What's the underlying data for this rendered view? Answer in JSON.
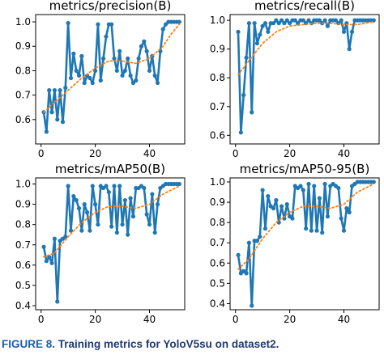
{
  "figure": {
    "label": "FIGURE 8.",
    "caption": "Training metrics for YoloV5su on dataset2."
  },
  "colors": {
    "results": "#1f77b4",
    "smooth": "#ff7f0e"
  },
  "chart_data": [
    {
      "type": "line",
      "title": "metrics/precision(B)",
      "xlim": [
        -2,
        53
      ],
      "ylim": [
        0.5,
        1.03
      ],
      "xticks": [
        0,
        20,
        40
      ],
      "yticks": [
        0.6,
        0.7,
        0.8,
        0.9,
        1.0
      ],
      "ytick_labels": [
        "0.6",
        "0.7",
        "0.8",
        "0.9",
        "1.0"
      ],
      "series": [
        {
          "style": "results-markers",
          "x": [
            1,
            2,
            3,
            4,
            5,
            6,
            7,
            8,
            9,
            10,
            11,
            12,
            13,
            14,
            15,
            16,
            17,
            18,
            19,
            20,
            21,
            22,
            23,
            24,
            25,
            26,
            27,
            28,
            29,
            30,
            31,
            32,
            33,
            34,
            35,
            36,
            37,
            38,
            39,
            40,
            41,
            42,
            43,
            44,
            45,
            46,
            47,
            48,
            49,
            50,
            51
          ],
          "y": [
            0.63,
            0.55,
            0.72,
            0.63,
            0.72,
            0.6,
            0.72,
            0.59,
            0.73,
            0.995,
            0.77,
            0.87,
            0.8,
            0.78,
            0.86,
            0.75,
            0.78,
            0.77,
            0.75,
            0.8,
            0.99,
            0.76,
            0.85,
            0.94,
            0.99,
            0.99,
            0.85,
            0.8,
            0.88,
            0.78,
            0.8,
            0.85,
            0.78,
            0.75,
            0.76,
            0.85,
            0.9,
            0.92,
            0.88,
            0.8,
            0.86,
            0.78,
            0.75,
            0.88,
            0.97,
            0.99,
            1.0,
            1.0,
            1.0,
            1.0,
            1.0
          ]
        },
        {
          "style": "smooth-dotted",
          "x": [
            1,
            5,
            10,
            15,
            20,
            25,
            30,
            35,
            40,
            45,
            48,
            51
          ],
          "y": [
            0.63,
            0.67,
            0.72,
            0.77,
            0.81,
            0.84,
            0.84,
            0.83,
            0.85,
            0.9,
            0.95,
            0.99
          ]
        }
      ]
    },
    {
      "type": "line",
      "title": "metrics/recall(B)",
      "xlim": [
        -2,
        53
      ],
      "ylim": [
        0.57,
        1.02
      ],
      "xticks": [
        0,
        20,
        40
      ],
      "yticks": [
        0.6,
        0.7,
        0.8,
        0.9,
        1.0
      ],
      "ytick_labels": [
        "0.6",
        "0.7",
        "0.8",
        "0.9",
        "1.0"
      ],
      "series": [
        {
          "style": "results-markers",
          "x": [
            1,
            2,
            3,
            4,
            5,
            6,
            7,
            8,
            9,
            10,
            11,
            12,
            13,
            14,
            15,
            16,
            17,
            18,
            19,
            20,
            21,
            22,
            23,
            24,
            25,
            26,
            27,
            28,
            29,
            30,
            31,
            32,
            33,
            34,
            35,
            36,
            37,
            38,
            39,
            40,
            41,
            42,
            43,
            44,
            45,
            46,
            47,
            48,
            49,
            50,
            51
          ],
          "y": [
            0.96,
            0.61,
            0.74,
            0.87,
            0.99,
            0.68,
            0.99,
            0.92,
            0.95,
            0.98,
            0.99,
            0.96,
            0.99,
            0.99,
            1.0,
            0.99,
            1.0,
            0.99,
            1.0,
            0.99,
            1.0,
            1.0,
            0.99,
            1.0,
            1.0,
            0.99,
            1.0,
            0.99,
            1.0,
            1.0,
            1.0,
            0.99,
            1.0,
            0.98,
            1.0,
            1.0,
            1.0,
            0.99,
            1.0,
            0.96,
            0.99,
            0.9,
            0.96,
            1.0,
            1.0,
            1.0,
            1.0,
            1.0,
            1.0,
            1.0,
            1.0
          ]
        },
        {
          "style": "smooth-dotted",
          "x": [
            1,
            5,
            10,
            15,
            20,
            25,
            30,
            35,
            40,
            45,
            51
          ],
          "y": [
            0.81,
            0.86,
            0.92,
            0.96,
            0.98,
            0.985,
            0.99,
            0.99,
            0.985,
            0.985,
            0.995
          ]
        }
      ]
    },
    {
      "type": "line",
      "title": "metrics/mAP50(B)",
      "xlim": [
        -2,
        53
      ],
      "ylim": [
        0.38,
        1.03
      ],
      "xticks": [
        0,
        20,
        40
      ],
      "yticks": [
        0.4,
        0.5,
        0.6,
        0.7,
        0.8,
        0.9,
        1.0
      ],
      "ytick_labels": [
        "0.4",
        "0.5",
        "0.6",
        "0.7",
        "0.8",
        "0.9",
        "1.0"
      ],
      "series": [
        {
          "style": "results-markers",
          "x": [
            1,
            2,
            3,
            4,
            5,
            6,
            7,
            8,
            9,
            10,
            11,
            12,
            13,
            14,
            15,
            16,
            17,
            18,
            19,
            20,
            21,
            22,
            23,
            24,
            25,
            26,
            27,
            28,
            29,
            30,
            31,
            32,
            33,
            34,
            35,
            36,
            37,
            38,
            39,
            40,
            41,
            42,
            43,
            44,
            45,
            46,
            47,
            48,
            49,
            50,
            51
          ],
          "y": [
            0.69,
            0.62,
            0.64,
            0.61,
            0.73,
            0.42,
            0.72,
            0.73,
            0.74,
            0.99,
            0.77,
            0.94,
            0.92,
            0.88,
            0.77,
            0.9,
            0.86,
            0.77,
            0.99,
            0.9,
            0.8,
            0.99,
            0.98,
            0.99,
            0.96,
            0.79,
            0.99,
            0.76,
            0.99,
            0.8,
            0.92,
            0.75,
            0.93,
            0.84,
            0.98,
            0.98,
            0.99,
            0.98,
            0.85,
            0.8,
            0.95,
            0.76,
            0.9,
            0.98,
            0.99,
            1.0,
            1.0,
            1.0,
            1.0,
            1.0,
            1.0
          ]
        },
        {
          "style": "smooth-dotted",
          "x": [
            1,
            5,
            10,
            15,
            20,
            25,
            30,
            35,
            40,
            45,
            51
          ],
          "y": [
            0.64,
            0.66,
            0.74,
            0.81,
            0.86,
            0.89,
            0.89,
            0.88,
            0.9,
            0.95,
            0.99
          ]
        }
      ]
    },
    {
      "type": "line",
      "title": "metrics/mAP50-95(B)",
      "xlim": [
        -2,
        53
      ],
      "ylim": [
        0.37,
        1.02
      ],
      "xticks": [
        0,
        20,
        40
      ],
      "yticks": [
        0.4,
        0.5,
        0.6,
        0.7,
        0.8,
        0.9,
        1.0
      ],
      "ytick_labels": [
        "0.4",
        "0.5",
        "0.6",
        "0.7",
        "0.8",
        "0.9",
        "1.0"
      ],
      "series": [
        {
          "style": "results-markers",
          "x": [
            1,
            2,
            3,
            4,
            5,
            6,
            7,
            8,
            9,
            10,
            11,
            12,
            13,
            14,
            15,
            16,
            17,
            18,
            19,
            20,
            21,
            22,
            23,
            24,
            25,
            26,
            27,
            28,
            29,
            30,
            31,
            32,
            33,
            34,
            35,
            36,
            37,
            38,
            39,
            40,
            41,
            42,
            43,
            44,
            45,
            46,
            47,
            48,
            49,
            50,
            51
          ],
          "y": [
            0.64,
            0.55,
            0.56,
            0.55,
            0.7,
            0.39,
            0.71,
            0.71,
            0.73,
            0.96,
            0.77,
            0.93,
            0.88,
            0.87,
            0.91,
            0.8,
            0.88,
            0.82,
            0.89,
            0.83,
            0.82,
            0.98,
            0.97,
            0.98,
            0.96,
            0.77,
            0.99,
            0.76,
            0.98,
            0.76,
            0.92,
            0.75,
            0.99,
            0.83,
            0.98,
            0.99,
            0.98,
            0.97,
            0.82,
            0.76,
            0.87,
            0.85,
            0.98,
            0.99,
            1.0,
            1.0,
            1.0,
            1.0,
            1.0,
            1.0,
            1.0
          ]
        },
        {
          "style": "smooth-dotted",
          "x": [
            1,
            5,
            10,
            15,
            20,
            25,
            30,
            35,
            40,
            45,
            51
          ],
          "y": [
            0.57,
            0.62,
            0.72,
            0.8,
            0.85,
            0.88,
            0.88,
            0.87,
            0.89,
            0.95,
            0.99
          ]
        }
      ]
    }
  ]
}
